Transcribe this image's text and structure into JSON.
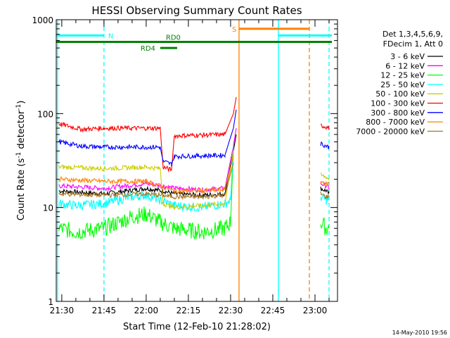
{
  "chart_data": {
    "type": "line",
    "title": "HESSI Observing Summary Count Rates",
    "xlabel": "Start Time (12-Feb-10 21:28:02)",
    "ylabel_main": "Count Rate (s",
    "ylabel_sup1": "-1",
    "ylabel_mid": " detector",
    "ylabel_sup2": "-1",
    "ylabel_end": ")",
    "footer": "14-May-2010 19:56",
    "y_scale": "log",
    "xlim": [
      "21:28:02",
      "23:08:00"
    ],
    "ylim": [
      1,
      1000
    ],
    "x_ticks": [
      "21:30",
      "21:45",
      "22:00",
      "22:15",
      "22:30",
      "22:45",
      "23:00"
    ],
    "y_ticks": [
      "1",
      "10",
      "100",
      "1000"
    ],
    "legend": {
      "placement": "right",
      "header": [
        "Det 1,3,4,5,6,9,",
        "FDecim 1, Att 0"
      ]
    },
    "series": [
      {
        "name": "3 - 6 keV",
        "color": "#000000",
        "x": [
          "21:29",
          "21:45",
          "22:00",
          "22:06",
          "22:10",
          "22:20",
          "22:28",
          "22:31",
          "22:32",
          "23:02",
          "23:04",
          "23:05"
        ],
        "values": [
          15,
          14,
          16,
          15,
          14,
          13.5,
          14,
          40,
          60,
          16,
          15,
          14
        ]
      },
      {
        "name": "6 - 12 keV",
        "color": "#ff00ff",
        "x": [
          "21:29",
          "21:45",
          "22:00",
          "22:06",
          "22:10",
          "22:20",
          "22:28",
          "22:31",
          "22:32",
          "23:02",
          "23:04",
          "23:05"
        ],
        "values": [
          17,
          16,
          18,
          17,
          16,
          15.5,
          16,
          45,
          70,
          18,
          17,
          16
        ]
      },
      {
        "name": "12 - 25 keV",
        "color": "#00ff00",
        "x": [
          "21:29",
          "21:35",
          "21:45",
          "21:55",
          "22:00",
          "22:05",
          "22:10",
          "22:20",
          "22:28",
          "22:30",
          "22:31",
          "23:02",
          "23:04",
          "23:05"
        ],
        "values": [
          6,
          5.5,
          6,
          8,
          8.5,
          7,
          6,
          5.5,
          6,
          7,
          40,
          7,
          6,
          6
        ]
      },
      {
        "name": "25 - 50 keV",
        "color": "#00ffff",
        "x": [
          "21:29",
          "21:35",
          "21:45",
          "21:55",
          "22:00",
          "22:05",
          "22:10",
          "22:20",
          "22:28",
          "22:30",
          "22:31",
          "23:02",
          "23:04",
          "23:05"
        ],
        "values": [
          11,
          10.5,
          11,
          13,
          13.5,
          12,
          10.5,
          10,
          11,
          12,
          45,
          13,
          12,
          12
        ]
      },
      {
        "name": "50 - 100 keV",
        "color": "#cccc00",
        "x": [
          "21:29",
          "21:45",
          "22:00",
          "22:05",
          "22:06",
          "22:10",
          "22:20",
          "22:28",
          "22:31",
          "23:02",
          "23:04",
          "23:05"
        ],
        "values": [
          27,
          26,
          27,
          26,
          11,
          10,
          10.5,
          11,
          40,
          22,
          21,
          20
        ]
      },
      {
        "name": "100 - 300 keV",
        "color": "#ff0000",
        "x": [
          "21:29",
          "21:37",
          "21:45",
          "22:05",
          "22:06",
          "22:09",
          "22:10",
          "22:28",
          "22:31",
          "22:32",
          "23:02",
          "23:04",
          "23:05"
        ],
        "values": [
          78,
          68,
          70,
          70,
          27,
          25,
          58,
          60,
          100,
          150,
          75,
          72,
          70
        ]
      },
      {
        "name": "300 - 800 keV",
        "color": "#0000ff",
        "x": [
          "21:29",
          "21:37",
          "21:45",
          "22:05",
          "22:06",
          "22:09",
          "22:10",
          "22:28",
          "22:31",
          "22:32",
          "23:02",
          "23:04",
          "23:05"
        ],
        "values": [
          50,
          45,
          44,
          44,
          31,
          29,
          35,
          36,
          70,
          110,
          48,
          45,
          44
        ]
      },
      {
        "name": "800 - 7000 keV",
        "color": "#ff8000",
        "x": [
          "21:29",
          "21:45",
          "22:00",
          "22:10",
          "22:20",
          "22:28",
          "22:31",
          "23:02",
          "23:04",
          "23:05"
        ],
        "values": [
          20,
          19,
          19,
          15,
          15,
          15.5,
          35,
          19,
          18,
          18
        ]
      },
      {
        "name": "7000 - 20000 keV",
        "color": "#aa7722",
        "x": [
          "21:29",
          "21:45",
          "22:00",
          "22:10",
          "22:20",
          "22:28",
          "22:31",
          "23:02",
          "23:04",
          "23:05"
        ],
        "values": [
          14,
          13.5,
          14,
          13,
          13,
          13.5,
          30,
          14,
          13,
          13
        ]
      }
    ],
    "flags": [
      {
        "label": "N",
        "color": "#00ffff",
        "start": "21:28",
        "end": "21:45",
        "level": 680
      },
      {
        "label": "",
        "color": "#00ffff",
        "start": "22:47",
        "end": "23:06",
        "level": 680
      },
      {
        "label": "S",
        "color": "#ff8000",
        "start": "22:33",
        "end": "22:58",
        "level": 800
      },
      {
        "label": "RD0",
        "color": "#008000",
        "start": "21:28",
        "end": "23:06",
        "level": 580
      },
      {
        "label": "RD4",
        "color": "#008000",
        "start": "22:05",
        "end": "22:11",
        "level": 500
      }
    ],
    "vlines": [
      {
        "time": "21:28:30",
        "color": "#00ffff",
        "style": "solid"
      },
      {
        "time": "21:45",
        "color": "#00ffff",
        "style": "dashed"
      },
      {
        "time": "22:33",
        "color": "#ff8000",
        "style": "solid"
      },
      {
        "time": "22:47",
        "color": "#00ffff",
        "style": "solid"
      },
      {
        "time": "22:58",
        "color": "#ff8000",
        "style": "dashed"
      },
      {
        "time": "23:05",
        "color": "#00ffff",
        "style": "dashed"
      }
    ]
  }
}
